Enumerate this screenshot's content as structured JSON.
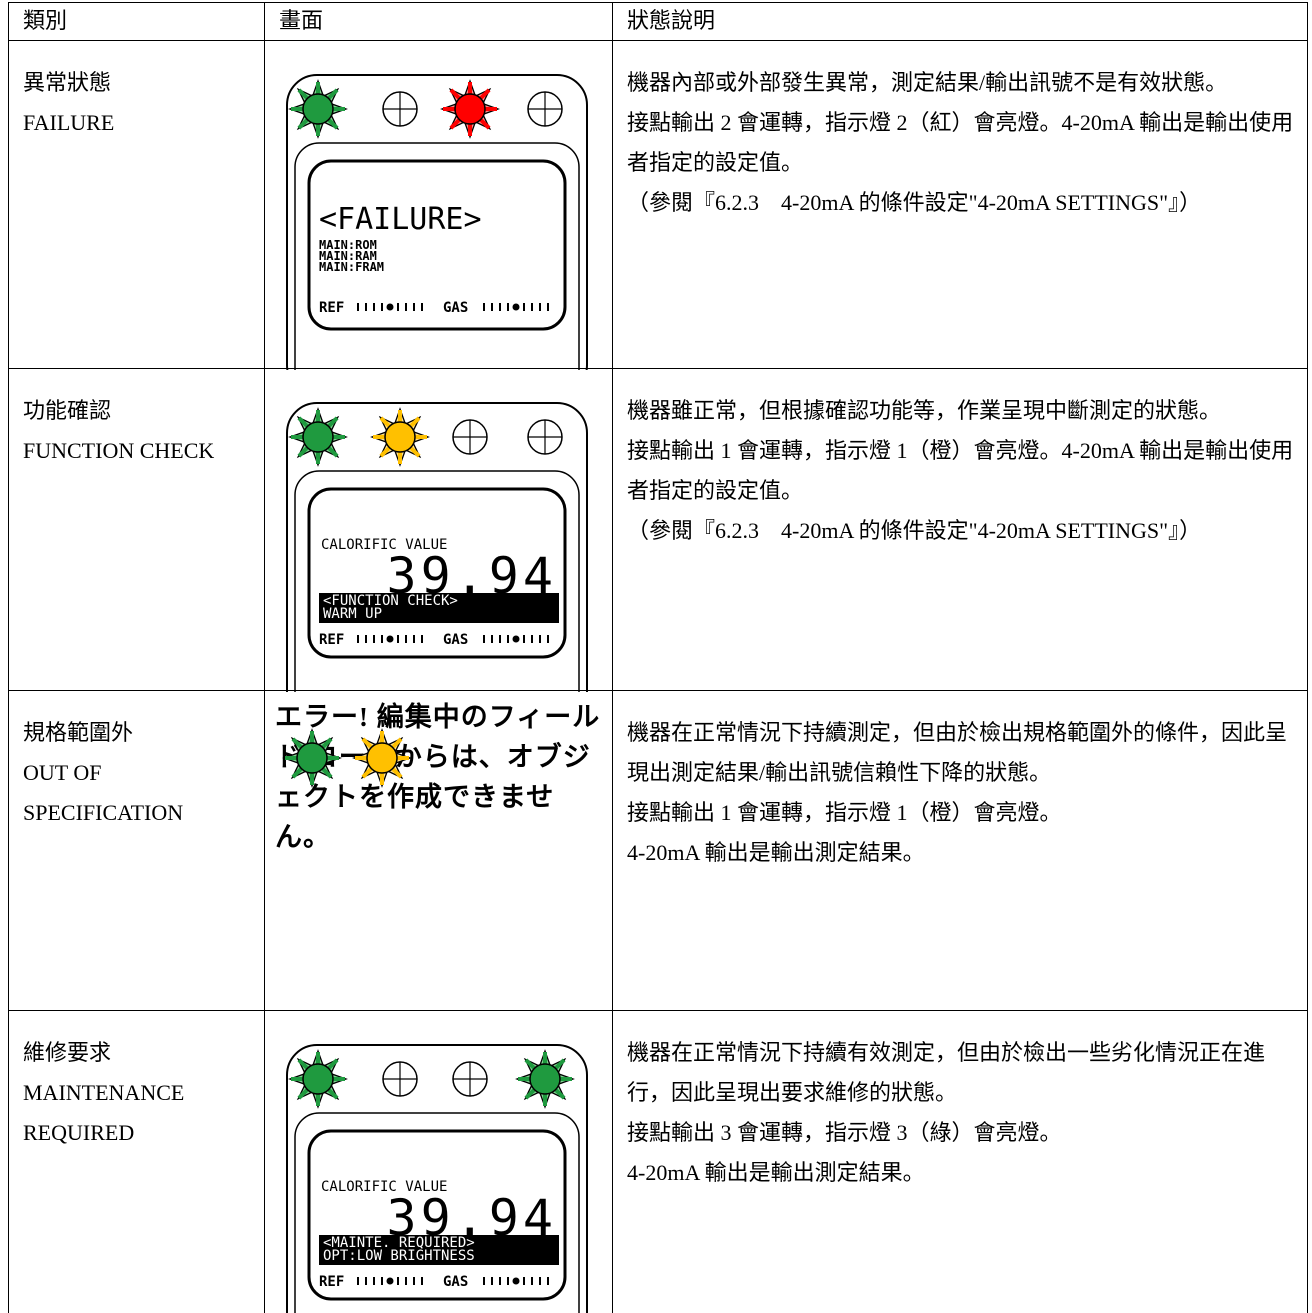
{
  "table": {
    "header": [
      "類別",
      "畫面",
      "狀態說明"
    ],
    "rows": [
      {
        "category": [
          "異常狀態",
          "FAILURE"
        ],
        "screen": {
          "title": "<FAILURE>",
          "lines": [
            "MAIN:ROM",
            "MAIN:RAM",
            "MAIN:FRAM"
          ],
          "gauges": [
            "REF",
            "GAS"
          ]
        },
        "description": [
          "機器內部或外部發生異常，測定結果/輸出訊號不是有效狀態。",
          "接點輸出 2 會運轉，指示燈 2（紅）會亮燈。4-20mA 輸出是輸出使用者指定的設定值。",
          "（參閱『6.2.3　4-20mA 的條件設定\"4-20mA SETTINGS\"』）"
        ]
      },
      {
        "category": [
          "功能確認",
          "FUNCTION CHECK"
        ],
        "screen": {
          "label": "CALORIFIC VALUE",
          "reading": "39.94",
          "status": [
            "<FUNCTION CHECK>",
            "WARM UP"
          ],
          "gauges": [
            "REF",
            "GAS"
          ]
        },
        "description": [
          "機器雖正常，但根據確認功能等，作業呈現中斷測定的狀態。",
          "接點輸出 1 會運轉，指示燈 1（橙）會亮燈。4-20mA 輸出是輸出使用者指定的設定值。",
          "（參閱『6.2.3　4-20mA 的條件設定\"4-20mA SETTINGS\"』）"
        ]
      },
      {
        "category": [
          "規格範圍外",
          "OUT OF SPECIFICATION"
        ],
        "screen": {
          "message": "エラー! 編集中のフィールド コードからは、オブジェクトを作成できません。"
        },
        "description": [
          "機器在正常情況下持續測定，但由於檢出規格範圍外的條件，因此呈現出測定結果/輸出訊號信賴性下降的狀態。",
          "接點輸出 1 會運轉，指示燈 1（橙）會亮燈。",
          "4-20mA 輸出是輸出測定結果。"
        ]
      },
      {
        "category": [
          "維修要求",
          "MAINTENANCE REQUIRED"
        ],
        "screen": {
          "label": "CALORIFIC VALUE",
          "reading": "39.94",
          "status": [
            "<MAINTE. REQUIRED>",
            "OPT:LOW BRIGHTNESS"
          ],
          "gauges": [
            "REF",
            "GAS"
          ]
        },
        "description": [
          "機器在正常情況下持續有效測定，但由於檢出一些劣化情況正在進行，因此呈現出要求維修的狀態。",
          "接點輸出 3 會運轉，指示燈 3（綠）會亮燈。",
          "4-20mA 輸出是輸出測定結果。"
        ]
      }
    ]
  }
}
